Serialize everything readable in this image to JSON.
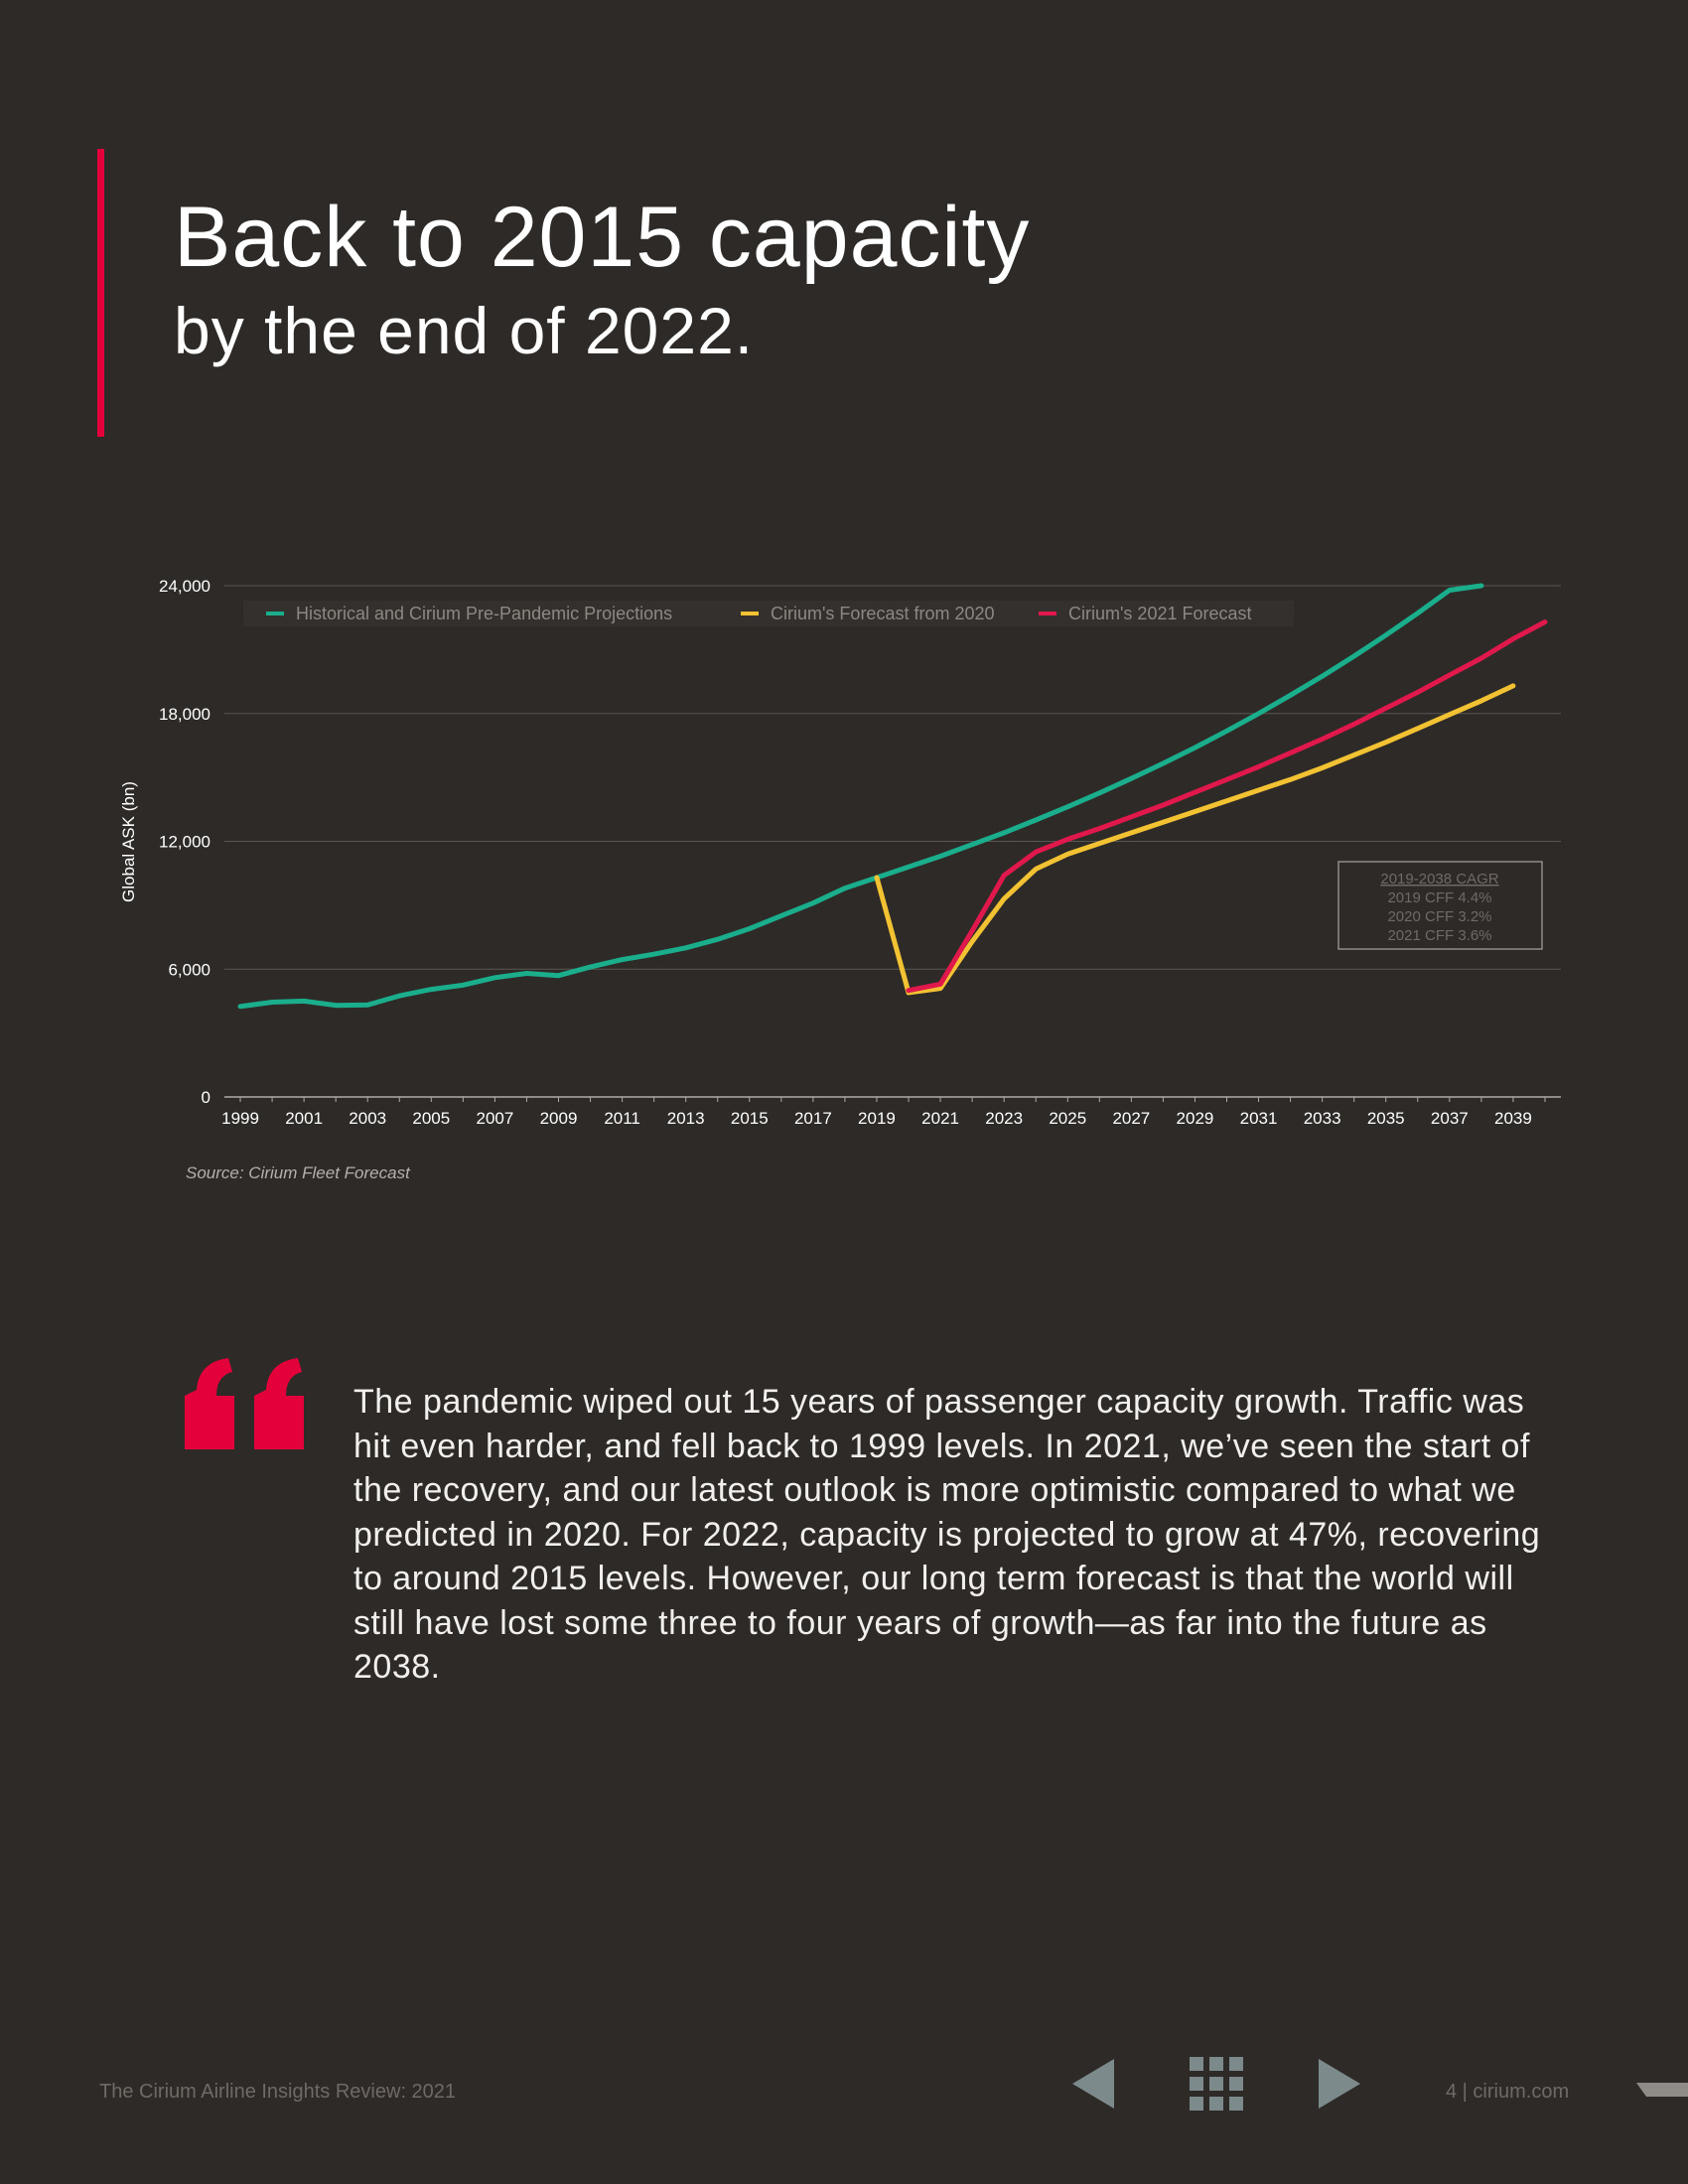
{
  "header": {
    "title_line1": "Back to 2015 capacity",
    "title_line2": "by the end of 2022."
  },
  "colors": {
    "background": "#2e2a27",
    "accent": "#e4003b",
    "historical": "#1aae8c",
    "forecast_2020": "#f2c233",
    "forecast_2021": "#e0184b"
  },
  "chart_data": {
    "type": "line",
    "ylabel": "Global ASK (bn)",
    "xlabel": "",
    "ylim": [
      0,
      24000
    ],
    "yticks": [
      0,
      6000,
      12000,
      18000,
      24000
    ],
    "ytick_labels": [
      "0",
      "6,000",
      "12,000",
      "18,000",
      "24,000"
    ],
    "xlim": [
      1998.5,
      2040.5
    ],
    "xtick_labels": [
      "1999",
      "2001",
      "2003",
      "2005",
      "2007",
      "2009",
      "2011",
      "2013",
      "2015",
      "2017",
      "2019",
      "2021",
      "2023",
      "2025",
      "2027",
      "2029",
      "2031",
      "2033",
      "2035",
      "2037",
      "2039"
    ],
    "grid": true,
    "legend_position": "top",
    "series": [
      {
        "name": "Historical and Cirium Pre-Pandemic Projections",
        "color": "#1aae8c",
        "x": [
          1999,
          2000,
          2001,
          2002,
          2003,
          2004,
          2005,
          2006,
          2007,
          2008,
          2009,
          2010,
          2011,
          2012,
          2013,
          2014,
          2015,
          2016,
          2017,
          2018,
          2019,
          2020,
          2021,
          2022,
          2023,
          2024,
          2025,
          2026,
          2027,
          2028,
          2029,
          2030,
          2031,
          2032,
          2033,
          2034,
          2035,
          2036,
          2037,
          2038
        ],
        "y": [
          4250,
          4450,
          4500,
          4300,
          4320,
          4750,
          5050,
          5250,
          5600,
          5800,
          5700,
          6100,
          6450,
          6700,
          7000,
          7400,
          7900,
          8500,
          9100,
          9800,
          10300,
          10800,
          11300,
          11850,
          12400,
          13000,
          13620,
          14270,
          14950,
          15660,
          16400,
          17180,
          18000,
          18860,
          19750,
          20690,
          21680,
          22710,
          23790,
          24000
        ]
      },
      {
        "name": "Cirium's Forecast from 2020",
        "color": "#f2c233",
        "x": [
          2019,
          2020,
          2021,
          2022,
          2023,
          2024,
          2025,
          2026,
          2027,
          2028,
          2029,
          2030,
          2031,
          2032,
          2033,
          2034,
          2035,
          2036,
          2037,
          2038,
          2039
        ],
        "y": [
          10300,
          4900,
          5100,
          7300,
          9300,
          10700,
          11400,
          11900,
          12400,
          12900,
          13400,
          13900,
          14400,
          14900,
          15450,
          16050,
          16650,
          17300,
          17950,
          18600,
          19300
        ]
      },
      {
        "name": "Cirium's 2021 Forecast",
        "color": "#e0184b",
        "x": [
          2020,
          2021,
          2022,
          2023,
          2024,
          2025,
          2026,
          2027,
          2028,
          2029,
          2030,
          2031,
          2032,
          2033,
          2034,
          2035,
          2036,
          2037,
          2038,
          2039,
          2040
        ],
        "y": [
          5000,
          5300,
          7800,
          10400,
          11500,
          12100,
          12600,
          13150,
          13700,
          14300,
          14900,
          15500,
          16150,
          16800,
          17500,
          18250,
          19000,
          19800,
          20600,
          21500,
          22300
        ]
      }
    ],
    "annotation": {
      "title": "2019-2038 CAGR",
      "lines": [
        "2019 CFF 4.4%",
        "2020 CFF 3.2%",
        "2021 CFF 3.6%"
      ]
    }
  },
  "source": "Source: Cirium Fleet Forecast",
  "quote": {
    "text": "The pandemic wiped out 15 years of passenger capacity growth. Traffic was hit even harder, and fell back to 1999 levels. In 2021, we’ve seen the start of the recovery, and our latest outlook is more optimistic compared to what we predicted in 2020. For 2022, capacity is projected to grow at 47%, recovering to around 2015 levels. However, our long term forecast is that the world will still have lost some three to four years of growth—as far into the future as 2038."
  },
  "footer": {
    "title": "The Cirium Airline Insights Review: 2021",
    "page": "4 | cirium.com"
  },
  "nav": {
    "prev_icon": "triangle-left-icon",
    "grid_icon": "grid-icon",
    "next_icon": "triangle-right-icon"
  }
}
